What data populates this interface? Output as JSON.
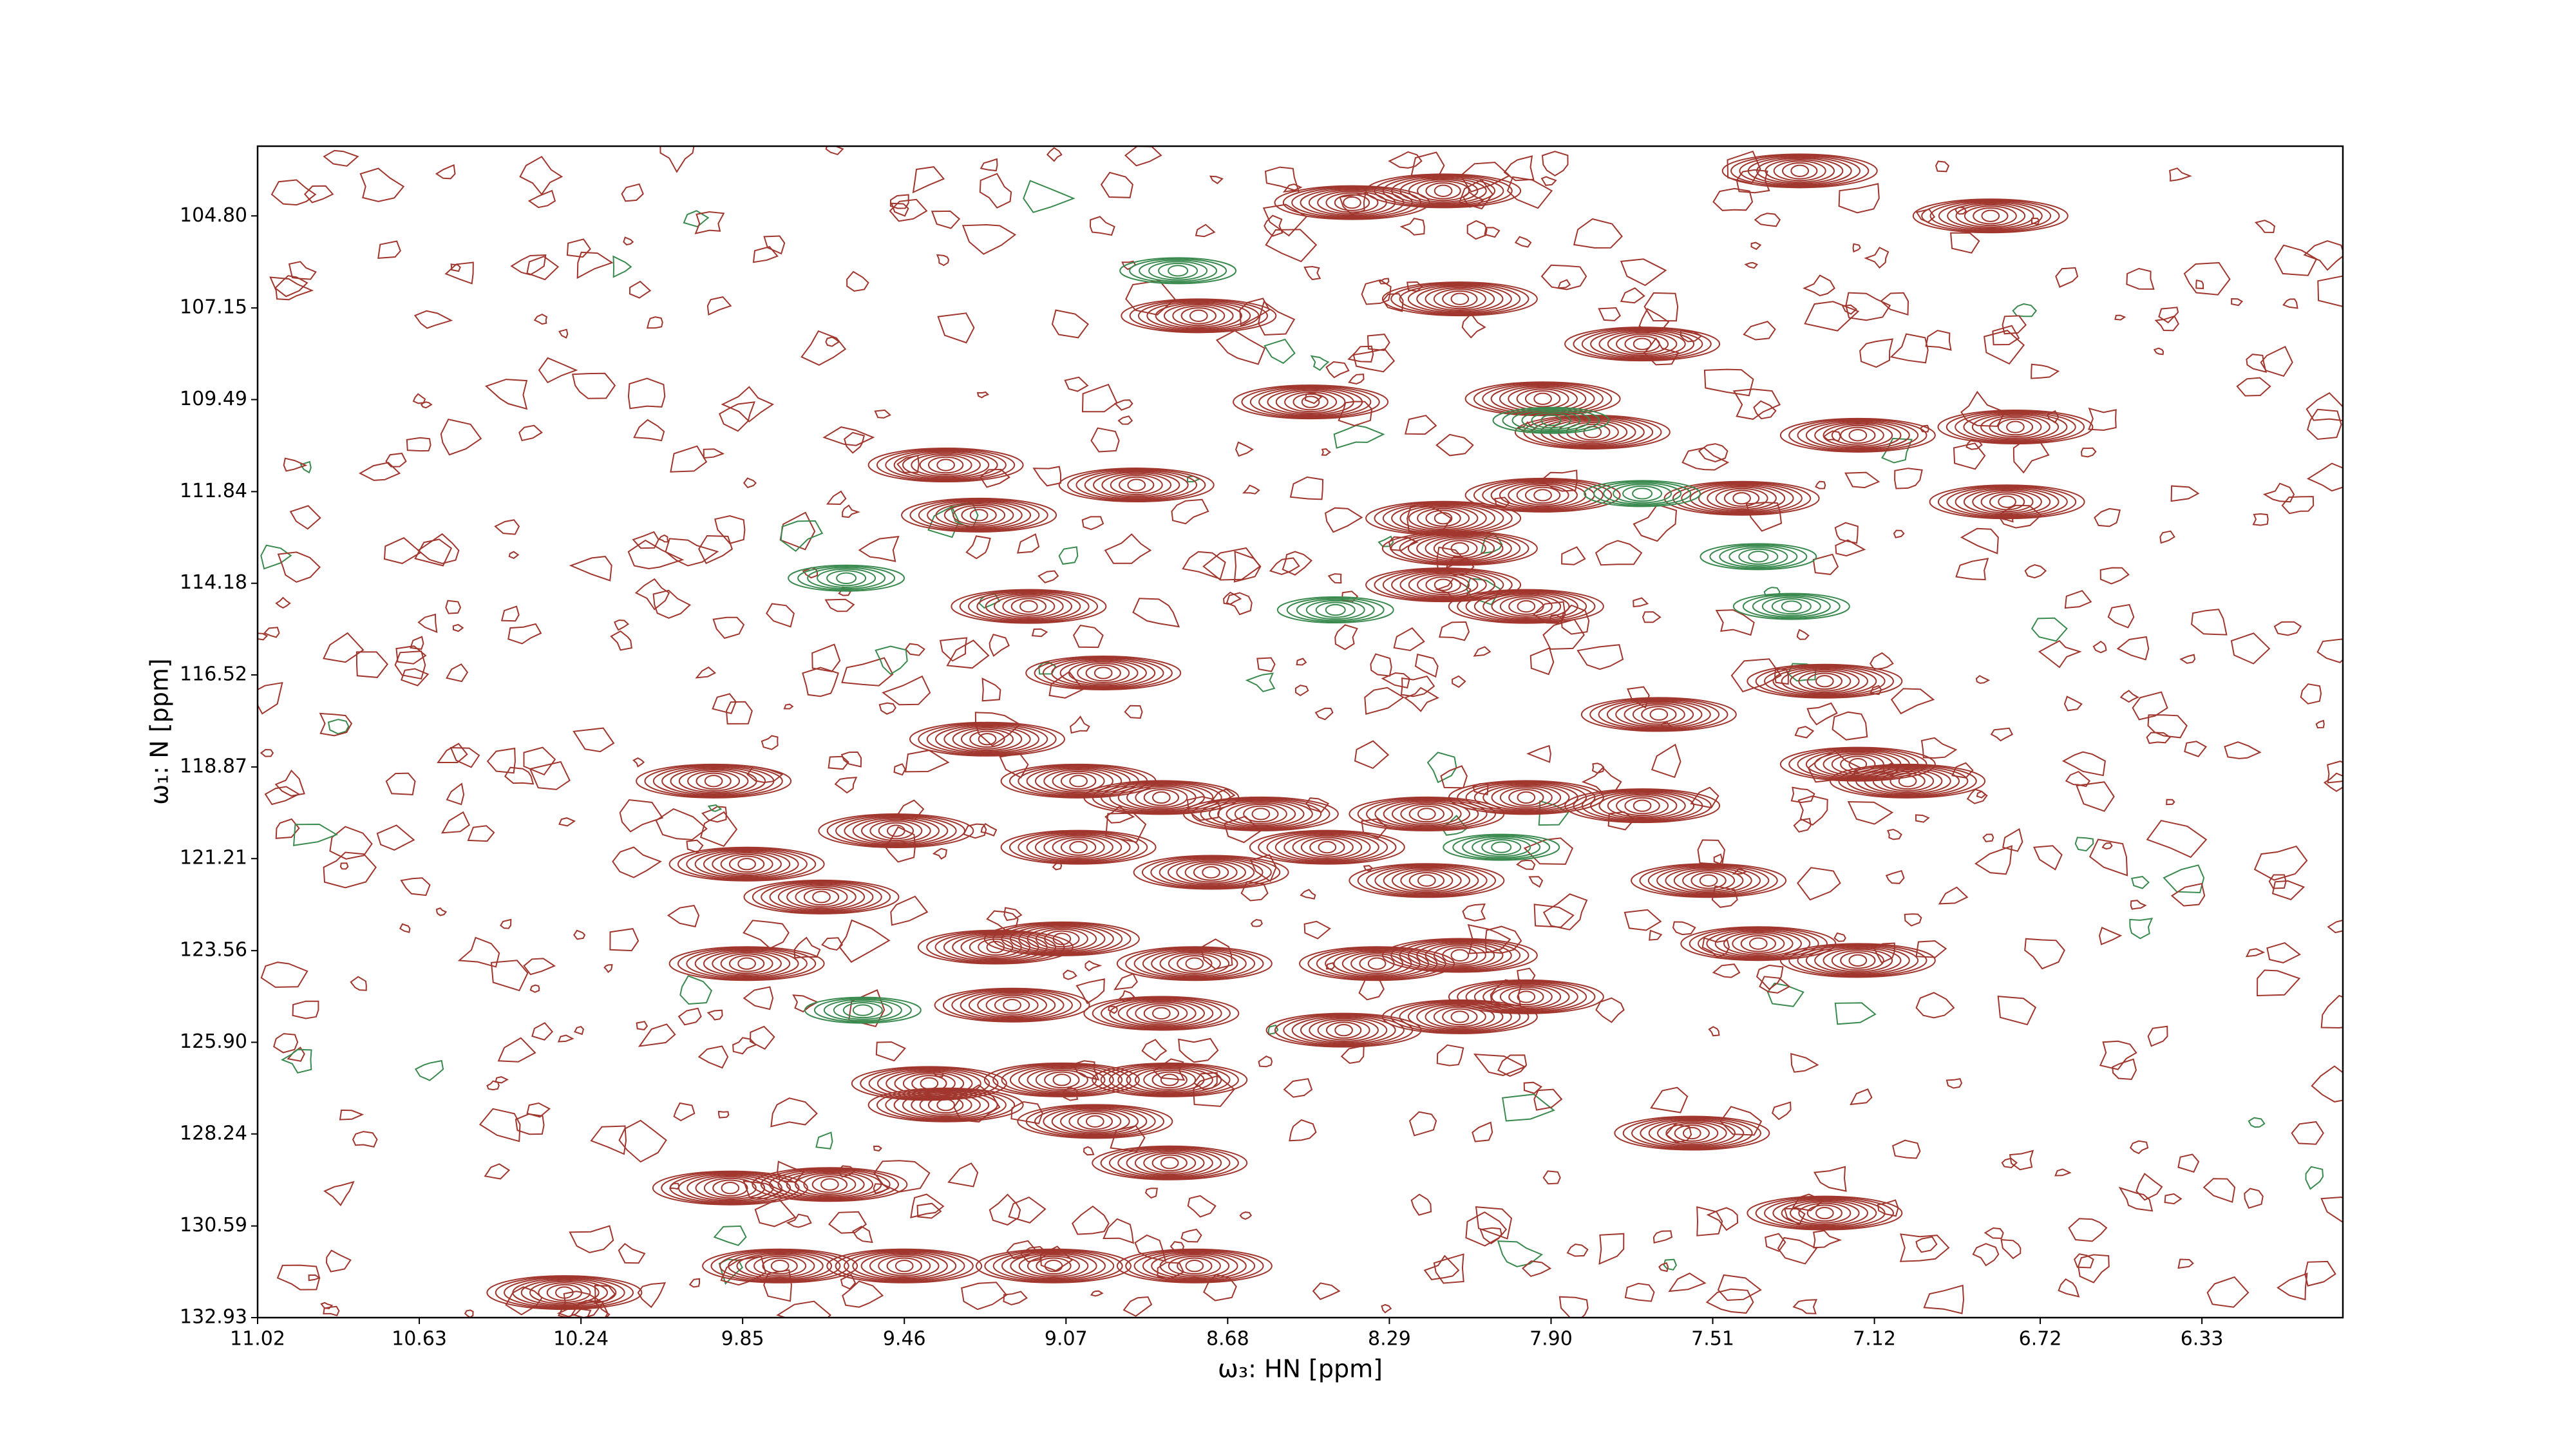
{
  "chart_data": {
    "type": "contour",
    "xlabel": "ω₃: HN [ppm]",
    "ylabel": "ω₁: N [ppm]",
    "xlim": [
      11.02,
      5.99
    ],
    "ylim": [
      132.93,
      103.02
    ],
    "xticks": [
      11.02,
      10.63,
      10.24,
      9.85,
      9.46,
      9.07,
      8.68,
      8.29,
      {
        "value": 7.9,
        "label": "7.90"
      },
      7.51,
      7.12,
      6.72,
      6.33
    ],
    "yticks": [
      {
        "value": 104.8,
        "label": "104.80"
      },
      107.15,
      109.49,
      111.84,
      114.18,
      116.52,
      118.87,
      121.21,
      123.56,
      {
        "value": 125.9,
        "label": "125.90"
      },
      128.24,
      130.59,
      132.93
    ],
    "series": [
      {
        "color": "#a0362d",
        "x": [
          7.3,
          6.84,
          8.38,
          8.16,
          8.75,
          8.12,
          7.68,
          8.48,
          7.92,
          7.8,
          7.16,
          6.78,
          9.36,
          8.9,
          6.8,
          7.44,
          7.92,
          8.16,
          9.28,
          8.12,
          7.96,
          9.16,
          8.16,
          8.98,
          7.24,
          9.26,
          7.64,
          9.92,
          7.16,
          7.04,
          9.48,
          9.84,
          7.52,
          9.66,
          9.04,
          8.84,
          8.6,
          8.2,
          7.96,
          7.68,
          9.04,
          8.44,
          8.72,
          8.2,
          9.24,
          9.08,
          8.76,
          8.32,
          8.12,
          7.4,
          7.16,
          9.84,
          9.2,
          8.84,
          8.4,
          8.12,
          7.96,
          9.4,
          9.08,
          8.82,
          9.36,
          9.0,
          8.82,
          9.64,
          9.88,
          7.56,
          7.24,
          9.76,
          9.1,
          8.76,
          9.46,
          10.28
        ],
        "values": [
          103.65,
          104.8,
          104.46,
          104.16,
          107.35,
          106.92,
          108.07,
          109.55,
          109.47,
          110.32,
          110.4,
          110.19,
          111.16,
          111.67,
          112.1,
          112.01,
          111.93,
          112.52,
          112.44,
          113.29,
          114.77,
          114.77,
          114.22,
          116.47,
          116.68,
          118.16,
          117.53,
          119.23,
          118.8,
          119.23,
          120.5,
          121.35,
          121.77,
          122.19,
          119.23,
          119.65,
          120.07,
          120.07,
          119.65,
          119.86,
          120.92,
          120.92,
          121.56,
          121.77,
          123.47,
          123.26,
          123.89,
          123.89,
          123.68,
          123.38,
          123.81,
          123.89,
          124.95,
          125.16,
          125.59,
          125.25,
          124.74,
          126.95,
          126.86,
          126.86,
          127.5,
          127.92,
          128.98,
          129.53,
          129.62,
          128.22,
          130.26,
          131.61,
          131.61,
          131.61,
          131.61,
          132.29
        ]
      },
      {
        "color": "#3a8a4f",
        "x": [
          9.6,
          8.42,
          7.4,
          7.32,
          7.9,
          7.68,
          8.8,
          8.02,
          9.56
        ],
        "values": [
          114.05,
          114.86,
          113.5,
          114.77,
          110.02,
          111.89,
          106.2,
          120.92,
          125.08
        ]
      }
    ]
  }
}
